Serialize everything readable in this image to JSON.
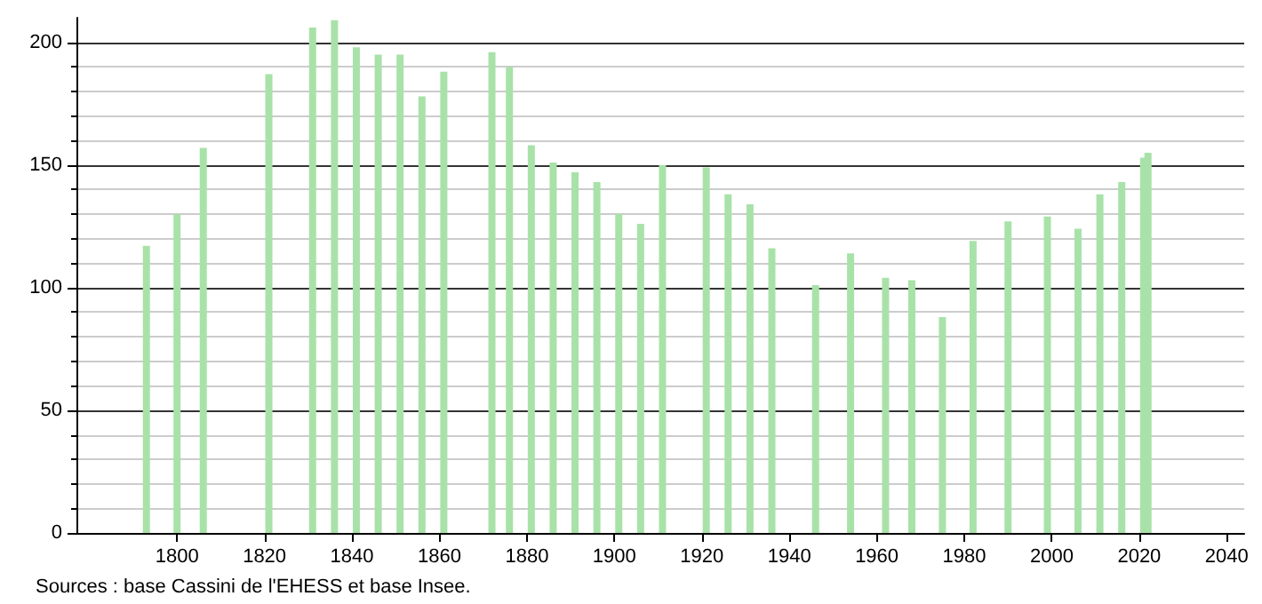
{
  "chart_data": {
    "type": "bar",
    "x": [
      1793,
      1800,
      1806,
      1821,
      1831,
      1836,
      1841,
      1846,
      1851,
      1856,
      1861,
      1872,
      1876,
      1881,
      1886,
      1891,
      1896,
      1901,
      1906,
      1911,
      1921,
      1926,
      1931,
      1936,
      1946,
      1954,
      1962,
      1968,
      1975,
      1982,
      1990,
      1999,
      2006,
      2011,
      2016,
      2021,
      2022
    ],
    "values": [
      117,
      130,
      157,
      187,
      206,
      209,
      198,
      195,
      195,
      178,
      188,
      196,
      190,
      158,
      151,
      147,
      143,
      130,
      126,
      150,
      149,
      138,
      134,
      116,
      101,
      114,
      104,
      103,
      88,
      119,
      127,
      129,
      124,
      138,
      143,
      153,
      155
    ],
    "color": "#a8e2a8",
    "xlim": [
      1777,
      2044
    ],
    "xticks": [
      1800,
      1820,
      1840,
      1860,
      1880,
      1900,
      1920,
      1940,
      1960,
      1980,
      2000,
      2020,
      2040
    ],
    "ylim": [
      0,
      210
    ],
    "yticks": [
      0,
      50,
      100,
      150,
      200
    ],
    "grid": "y",
    "annotations": [
      "Sources : base Cassini de l'EHESS et base Insee."
    ]
  }
}
